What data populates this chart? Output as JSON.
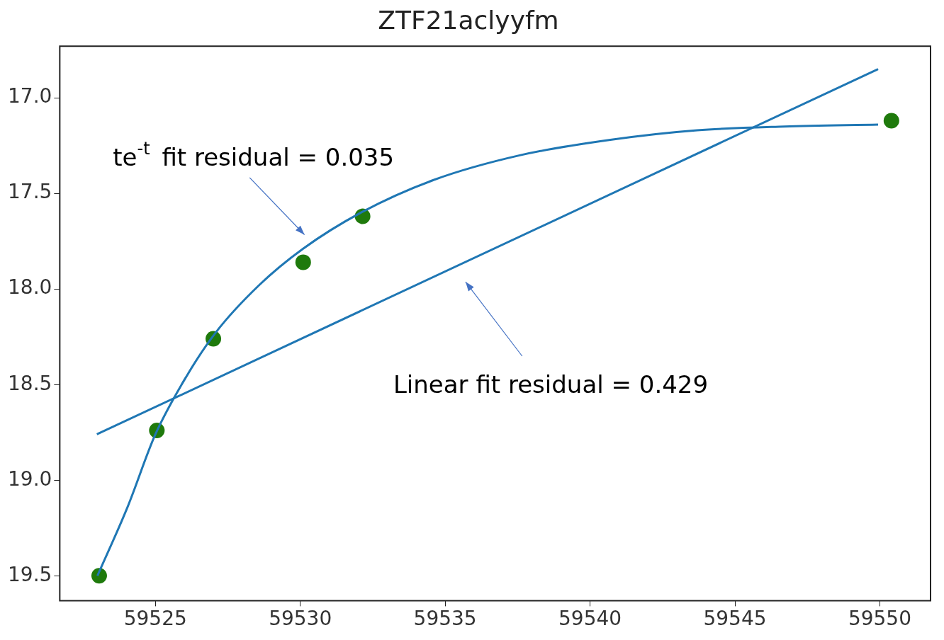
{
  "chart_data": {
    "type": "scatter",
    "title": "ZTF21aclyyfm",
    "xlim": [
      59521.7,
      59551.75
    ],
    "xticks": [
      59525,
      59530,
      59535,
      59540,
      59545,
      59550
    ],
    "ylim": [
      19.63,
      16.73
    ],
    "yticks": [
      {
        "value": 17,
        "label": "17.0"
      },
      {
        "value": 17.5,
        "label": "17.5"
      },
      {
        "value": 18,
        "label": "18.0"
      },
      {
        "value": 18.5,
        "label": "18.5"
      },
      {
        "value": 19,
        "label": "19.0"
      },
      {
        "value": 19.5,
        "label": "19.5"
      }
    ],
    "grid": false,
    "series": [
      {
        "type": "line",
        "marker": "none",
        "color": "#1f77b4",
        "x": [
          59523,
          59524.04,
          59525,
          59526.06,
          59527.07,
          59528.58,
          59530.09,
          59532.1,
          59534.6,
          59537.6,
          59540.7,
          59543.7,
          59546.7,
          59549.94
        ],
        "values": [
          19.5,
          19.14,
          18.76,
          18.46,
          18.23,
          17.98,
          17.79,
          17.6,
          17.43,
          17.3,
          17.22,
          17.17,
          17.15,
          17.14
        ]
      },
      {
        "type": "line",
        "marker": "none",
        "color": "#1f77b4",
        "x": [
          59522.98,
          59549.94
        ],
        "values": [
          18.76,
          16.85
        ]
      },
      {
        "marker": "circle",
        "color": "#1f7a0c",
        "x": [
          59523.06,
          59525.05,
          59527,
          59530.1,
          59532.15,
          59550.4
        ],
        "values": [
          19.5,
          18.74,
          18.26,
          17.86,
          17.62,
          17.12
        ]
      }
    ],
    "annotations": [
      "te$^{-t}$ fit residual = 0.035",
      "Linear fit residual = 0.429"
    ]
  }
}
